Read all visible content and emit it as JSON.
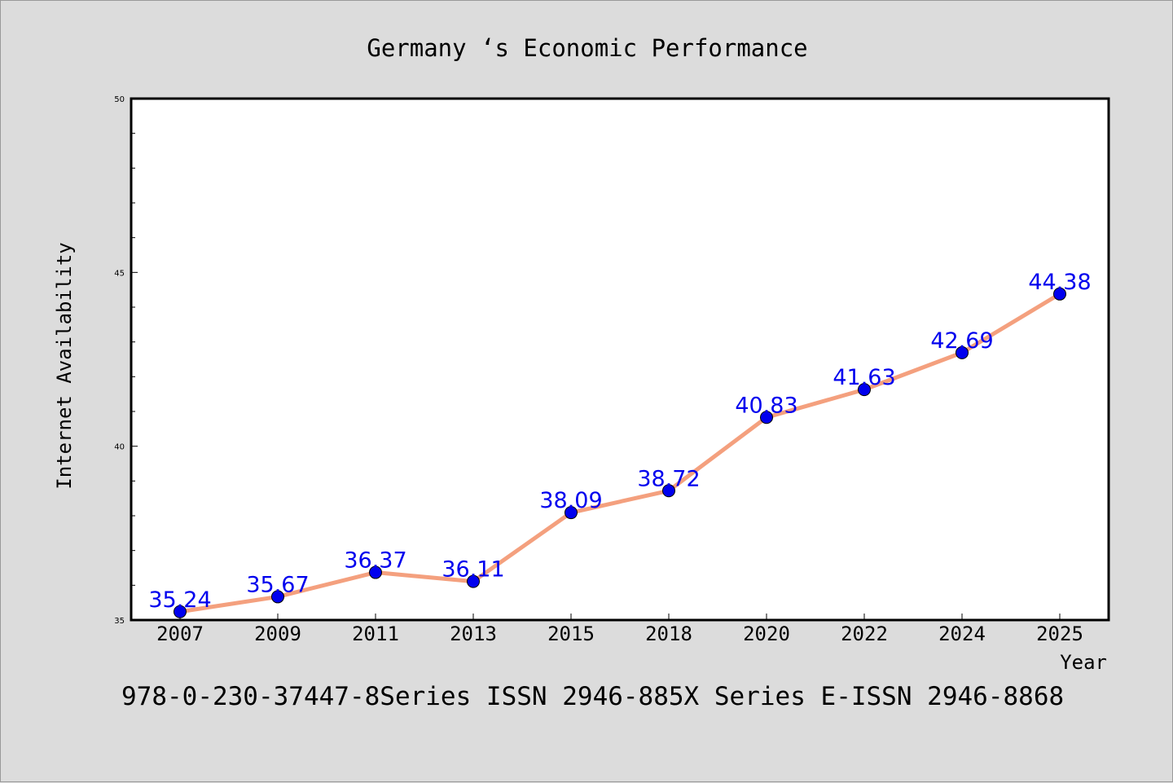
{
  "chart_data": {
    "type": "line",
    "title": "Germany ‘s Economic Performance",
    "xlabel": "Year",
    "ylabel": "Internet Availability",
    "categories": [
      "2007",
      "2009",
      "2011",
      "2013",
      "2015",
      "2018",
      "2020",
      "2022",
      "2024",
      "2025"
    ],
    "series": [
      {
        "values": [
          35.24,
          35.67,
          36.37,
          36.11,
          38.09,
          38.72,
          40.83,
          41.63,
          42.69,
          44.38
        ]
      }
    ],
    "data_labels": [
      "35.24",
      "35.67",
      "36.37",
      "36.11",
      "38.09",
      "38.72",
      "40.83",
      "41.63",
      "42.69",
      "44.38"
    ],
    "ylim": [
      35,
      50
    ],
    "y_major_ticks": [
      35,
      40,
      45,
      50
    ],
    "y_minor_step": 1,
    "grid": false,
    "legend": "none",
    "colors": {
      "background": "#dcdcdc",
      "plot_background": "#ffffff",
      "line": "#f4a07e",
      "marker": "#0000ee",
      "data_label": "#0000ee"
    }
  },
  "footer": {
    "text": "978-0-230-37447-8Series ISSN 2946-885X Series E-ISSN 2946-8868"
  }
}
